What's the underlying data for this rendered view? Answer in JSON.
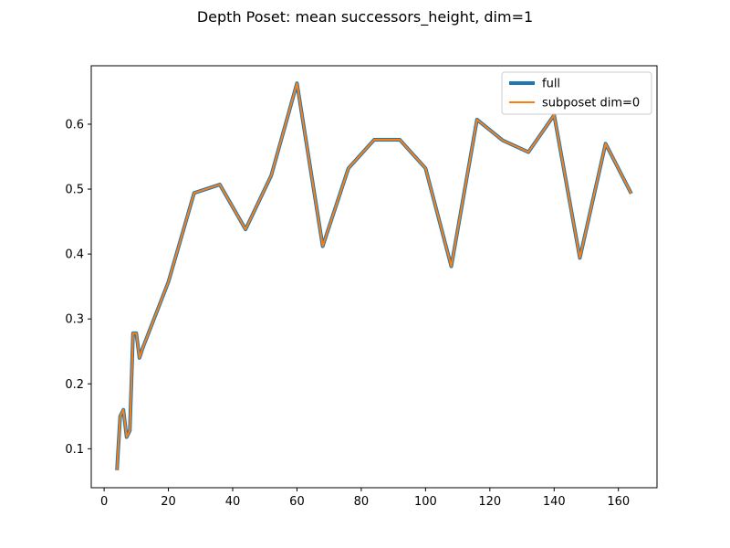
{
  "chart_data": {
    "type": "line",
    "title": "Depth Poset: mean successors_height, dim=1",
    "xlabel": "",
    "ylabel": "",
    "xlim": [
      -4,
      172
    ],
    "ylim": [
      0.04,
      0.69
    ],
    "x_ticks": [
      0,
      20,
      40,
      60,
      80,
      100,
      120,
      140,
      160
    ],
    "y_ticks": [
      0.1,
      0.2,
      0.3,
      0.4,
      0.5,
      0.6
    ],
    "grid": false,
    "legend_position": "top-right",
    "x": [
      4,
      5,
      6,
      7,
      8,
      9,
      10,
      11,
      12,
      20,
      28,
      36,
      44,
      52,
      60,
      68,
      76,
      84,
      92,
      100,
      108,
      116,
      124,
      132,
      140,
      148,
      156,
      164
    ],
    "series": [
      {
        "name": "full",
        "color": "#1f77b4",
        "values": [
          0.067,
          0.15,
          0.16,
          0.118,
          0.128,
          0.278,
          0.278,
          0.24,
          0.255,
          0.357,
          0.494,
          0.507,
          0.438,
          0.521,
          0.663,
          0.412,
          0.532,
          0.576,
          0.576,
          0.532,
          0.381,
          0.607,
          0.575,
          0.557,
          0.614,
          0.394,
          0.57,
          0.493
        ]
      },
      {
        "name": "subposet dim=0",
        "color": "#ff7f0e",
        "values": [
          0.067,
          0.15,
          0.16,
          0.118,
          0.128,
          0.278,
          0.278,
          0.24,
          0.255,
          0.357,
          0.494,
          0.507,
          0.438,
          0.521,
          0.663,
          0.412,
          0.532,
          0.576,
          0.576,
          0.532,
          0.381,
          0.607,
          0.575,
          0.557,
          0.614,
          0.394,
          0.57,
          0.493
        ]
      }
    ]
  }
}
